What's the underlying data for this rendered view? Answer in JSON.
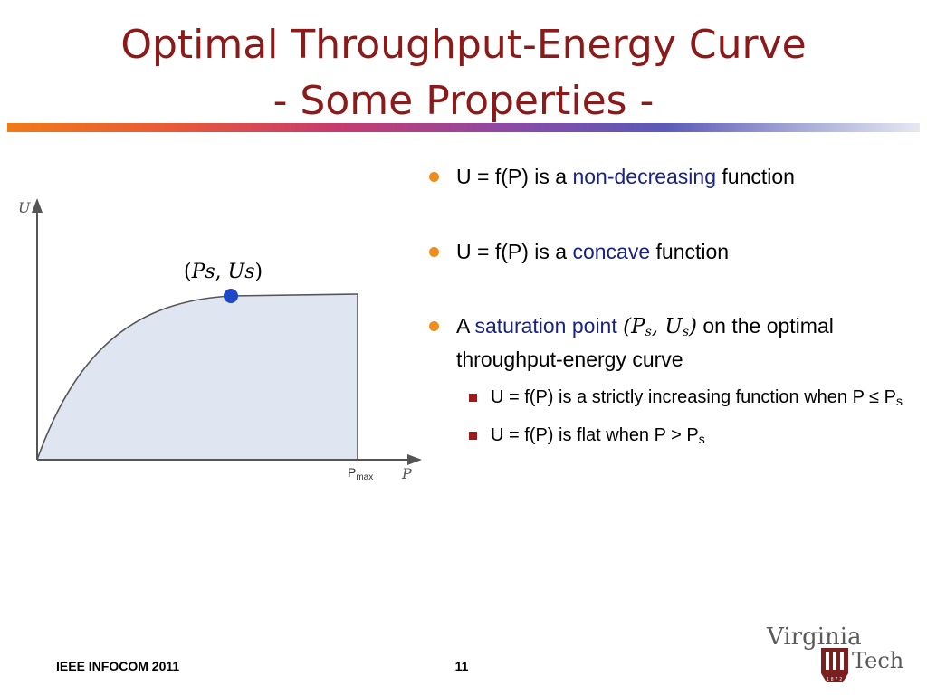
{
  "slide": {
    "title_line1": "Optimal Throughput-Energy Curve",
    "title_line2": "- Some Properties -"
  },
  "plot": {
    "y_axis_label": "U",
    "x_axis_label": "P",
    "x_tick_label": "P",
    "x_tick_subscript": "max",
    "point_label": "(𝑃𝑠, 𝑈𝑠)",
    "curve_color": "#555555",
    "fill_color": "#dfe6f2",
    "point_color": "#1f48c8"
  },
  "bullets": [
    {
      "prefix": "U = f(P) is a ",
      "highlight": "non-decreasing",
      "suffix": " function"
    },
    {
      "prefix": "U = f(P) is a ",
      "highlight": "concave",
      "suffix": " function"
    },
    {
      "prefix": "A ",
      "highlight": "saturation point",
      "math_p": "P",
      "math_p_sub": "s",
      "math_u": "U",
      "math_u_sub": "s",
      "suffix": " on the optimal throughput-energy curve",
      "sub_bullets": [
        {
          "text": "U = f(P) is a strictly increasing function when P ≤ P",
          "sub": "s"
        },
        {
          "text": "U = f(P) is flat when P > P",
          "sub": "s"
        }
      ]
    }
  ],
  "colors": {
    "title": "#8b1a1a",
    "bullet_dot": "#f08c1e",
    "highlight_text": "#1a237e",
    "sub_bullet_square": "#9b1b1b"
  },
  "footer": {
    "conference": "IEEE INFOCOM 2011",
    "page_number": "11"
  },
  "logo": {
    "line1": "Virginia",
    "line2": "Tech",
    "seal_year": "1872"
  }
}
